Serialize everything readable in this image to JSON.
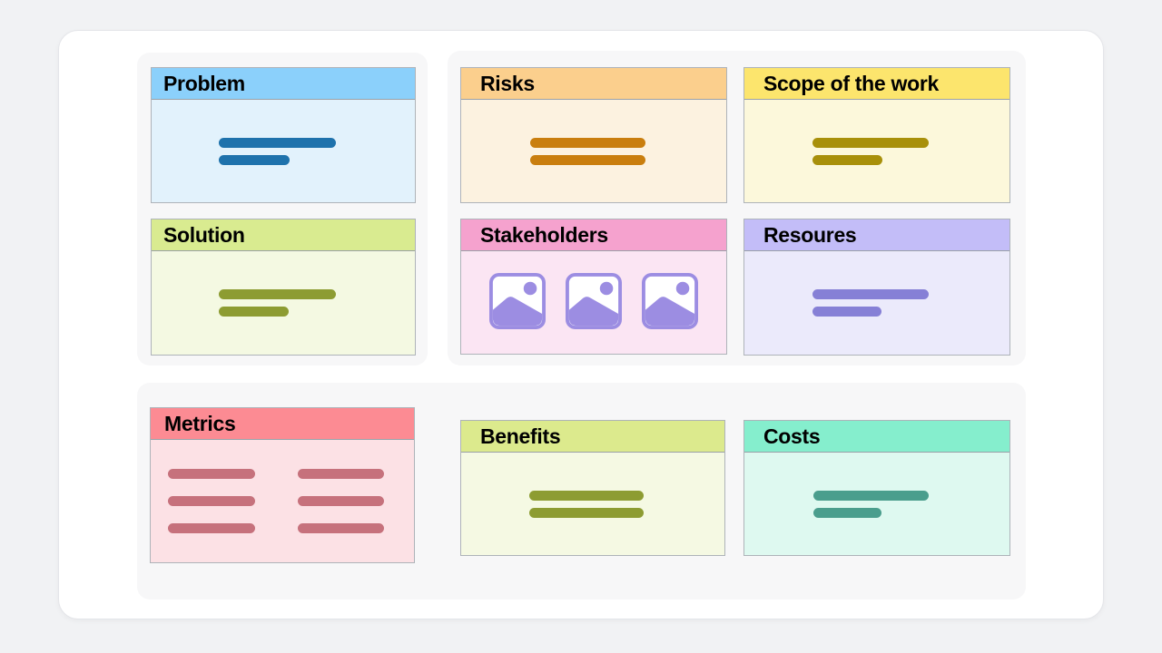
{
  "board": {
    "page_bg": "#F1F2F4",
    "board_bg": "#FFFFFF",
    "group_bg": "#F7F7F8",
    "card_border": "#AEB3B9",
    "header_divider": "#99A0A7",
    "title_color": "#000000"
  },
  "cards": [
    {
      "id": "problem",
      "title": "Problem",
      "header_bg": "#8BD0FB",
      "body_bg": "#E2F2FC",
      "accent": "#1E72AC",
      "content_type": "skeleton-lines",
      "line_widths": [
        129,
        78
      ]
    },
    {
      "id": "solution",
      "title": "Solution",
      "header_bg": "#D9EB90",
      "body_bg": "#F4F9E2",
      "accent": "#8D9C32",
      "content_type": "skeleton-lines",
      "line_widths": [
        129,
        77
      ]
    },
    {
      "id": "risks",
      "title": "Risks",
      "header_bg": "#FBCF8D",
      "body_bg": "#FCF2E0",
      "accent": "#C97E0E",
      "content_type": "skeleton-lines",
      "line_widths": [
        127,
        127
      ]
    },
    {
      "id": "scope",
      "title": "Scope of the work",
      "header_bg": "#FCE56D",
      "body_bg": "#FCF8DB",
      "accent": "#A8900A",
      "content_type": "skeleton-lines",
      "line_widths": [
        128,
        77
      ]
    },
    {
      "id": "stakeholders",
      "title": "Stakeholders",
      "header_bg": "#F5A2CE",
      "body_bg": "#FBE5F3",
      "accent": "#9C8DE2",
      "content_type": "image-placeholders",
      "image_count": 3
    },
    {
      "id": "resources",
      "title": "Resoures",
      "header_bg": "#C3BDF8",
      "body_bg": "#EBEAFB",
      "accent": "#8680D6",
      "content_type": "skeleton-lines",
      "line_widths": [
        128,
        76
      ]
    },
    {
      "id": "metrics",
      "title": "Metrics",
      "header_bg": "#FC8B93",
      "body_bg": "#FCE1E5",
      "accent": "#C6717C",
      "content_type": "skeleton-grid",
      "grid_rows": 3,
      "column_line_widths": [
        96,
        95
      ]
    },
    {
      "id": "benefits",
      "title": "Benefits",
      "header_bg": "#DCEA8D",
      "body_bg": "#F5F9E3",
      "accent": "#8D9C32",
      "content_type": "skeleton-lines",
      "line_widths": [
        126,
        126
      ]
    },
    {
      "id": "costs",
      "title": "Costs",
      "header_bg": "#85EECD",
      "body_bg": "#DEF9F0",
      "accent": "#4A9E8D",
      "content_type": "skeleton-lines",
      "line_widths": [
        127,
        75
      ]
    }
  ]
}
